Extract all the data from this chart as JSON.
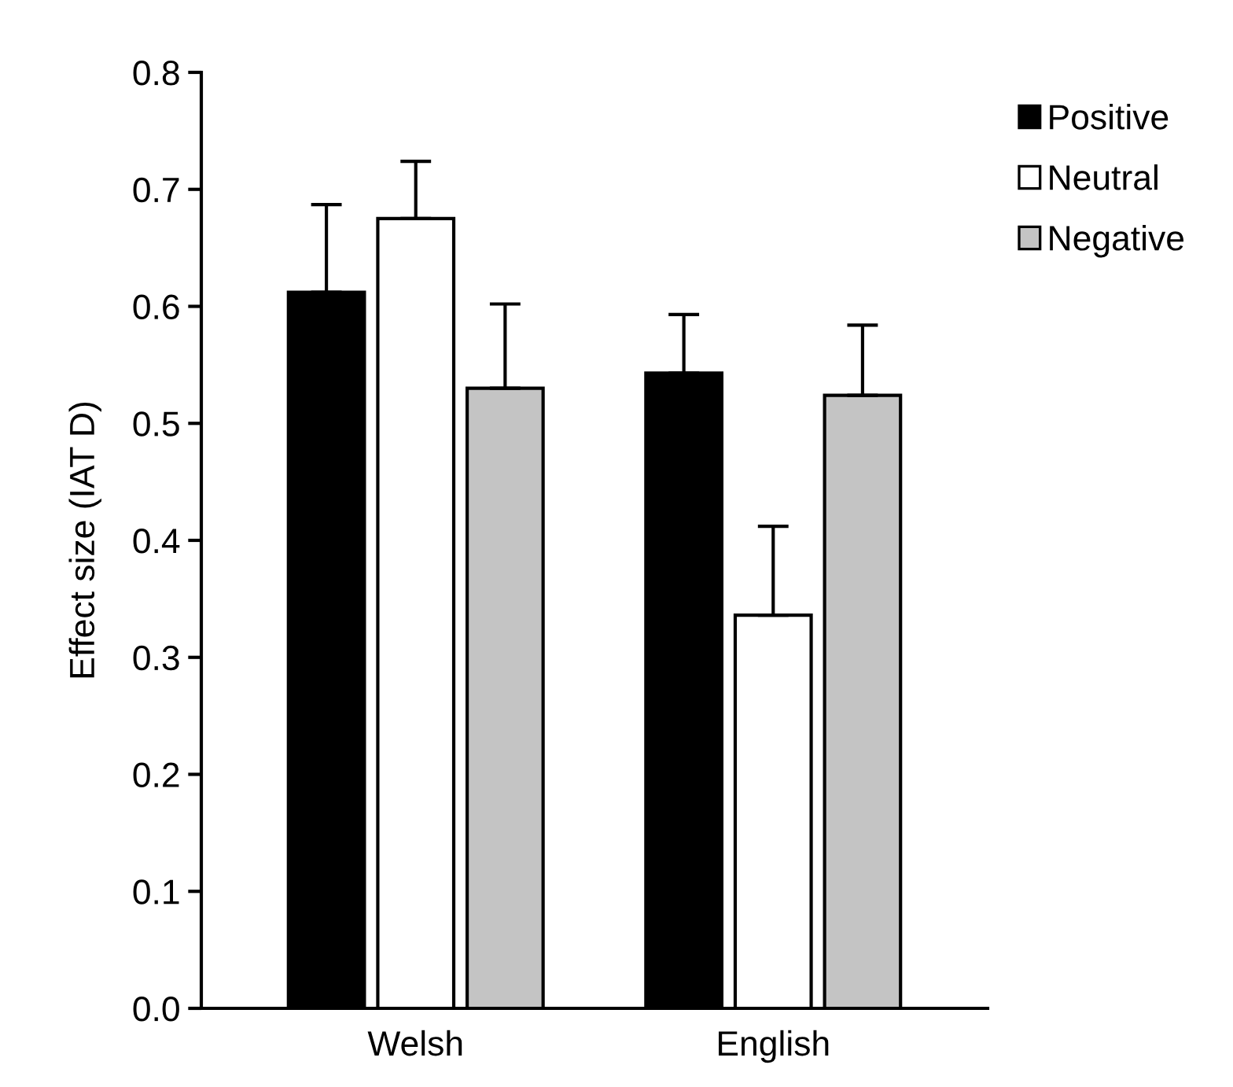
{
  "chart_data": {
    "type": "bar",
    "ylabel": "Effect size (IAT D)",
    "categories": [
      "Welsh",
      "English"
    ],
    "series": [
      {
        "name": "Positive",
        "color": "#000000",
        "values": [
          0.612,
          0.543
        ],
        "errors": [
          [
            0.612,
            0.687
          ],
          [
            0.543,
            0.593
          ]
        ]
      },
      {
        "name": "Neutral",
        "color": "#ffffff",
        "values": [
          0.675,
          0.336
        ],
        "errors": [
          [
            0.675,
            0.724
          ],
          [
            0.336,
            0.412
          ]
        ]
      },
      {
        "name": "Negative",
        "color": "#c4c4c4",
        "values": [
          0.53,
          0.524
        ],
        "errors": [
          [
            0.53,
            0.602
          ],
          [
            0.524,
            0.584
          ]
        ]
      }
    ],
    "ylim": [
      0,
      0.8
    ],
    "yticks": [
      {
        "value": 0,
        "label": "0.0"
      },
      {
        "value": 0.1,
        "label": "0.1"
      },
      {
        "value": 0.2,
        "label": "0.2"
      },
      {
        "value": 0.3,
        "label": "0.3"
      },
      {
        "value": 0.4,
        "label": "0.4"
      },
      {
        "value": 0.5,
        "label": "0.5"
      },
      {
        "value": 0.6,
        "label": "0.6"
      },
      {
        "value": 0.7,
        "label": "0.7"
      },
      {
        "value": 0.8,
        "label": "0.8"
      }
    ],
    "grid": false,
    "legend": "top right"
  }
}
